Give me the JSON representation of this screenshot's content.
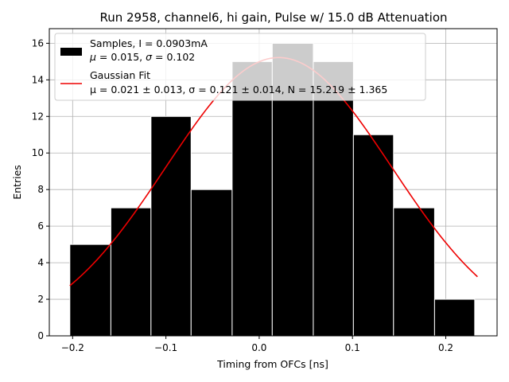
{
  "chart_data": {
    "type": "bar",
    "title": "Run 2958, channel6, hi gain, Pulse w/ 15.0 dB Attenuation",
    "xlabel": "Timing from OFCs [ns]",
    "ylabel": "Entries",
    "xlim": [
      -0.225,
      0.255
    ],
    "ylim": [
      0,
      16.8
    ],
    "grid": true,
    "legend_placement": "upper-left",
    "xticks": [
      -0.2,
      -0.1,
      0.0,
      0.1,
      0.2
    ],
    "xtick_labels": [
      "−0.2",
      "−0.1",
      "0.0",
      "0.1",
      "0.2"
    ],
    "yticks": [
      0,
      2,
      4,
      6,
      8,
      10,
      12,
      14,
      16
    ],
    "yticks_labels": [
      "0",
      "2",
      "4",
      "6",
      "8",
      "10",
      "12",
      "14",
      "16"
    ],
    "bin_edges": [
      -0.203,
      -0.159,
      -0.116,
      -0.073,
      -0.029,
      0.014,
      0.058,
      0.101,
      0.144,
      0.188,
      0.231
    ],
    "series": [
      {
        "name": "Samples",
        "legend_line1": "Samples, I = 0.0903mA",
        "legend_line2_prefix": "μ",
        "legend_line2": " = 0.015, ",
        "legend_line2_sigma": "σ",
        "legend_line2_tail": " = 0.102",
        "kind": "histogram",
        "values": [
          5,
          7,
          12,
          8,
          15,
          16,
          15,
          11,
          7,
          2
        ],
        "color": "#000000"
      },
      {
        "name": "Gaussian Fit",
        "legend_line1": "Gaussian Fit",
        "legend_line2": "μ = 0.021 ± 0.013, σ = 0.121 ± 0.014, N = 15.219 ± 1.365",
        "kind": "line",
        "color": "#ee0000",
        "mu": 0.021,
        "sigma": 0.121,
        "N": 15.219,
        "x_range": [
          -0.203,
          0.234
        ]
      }
    ]
  }
}
